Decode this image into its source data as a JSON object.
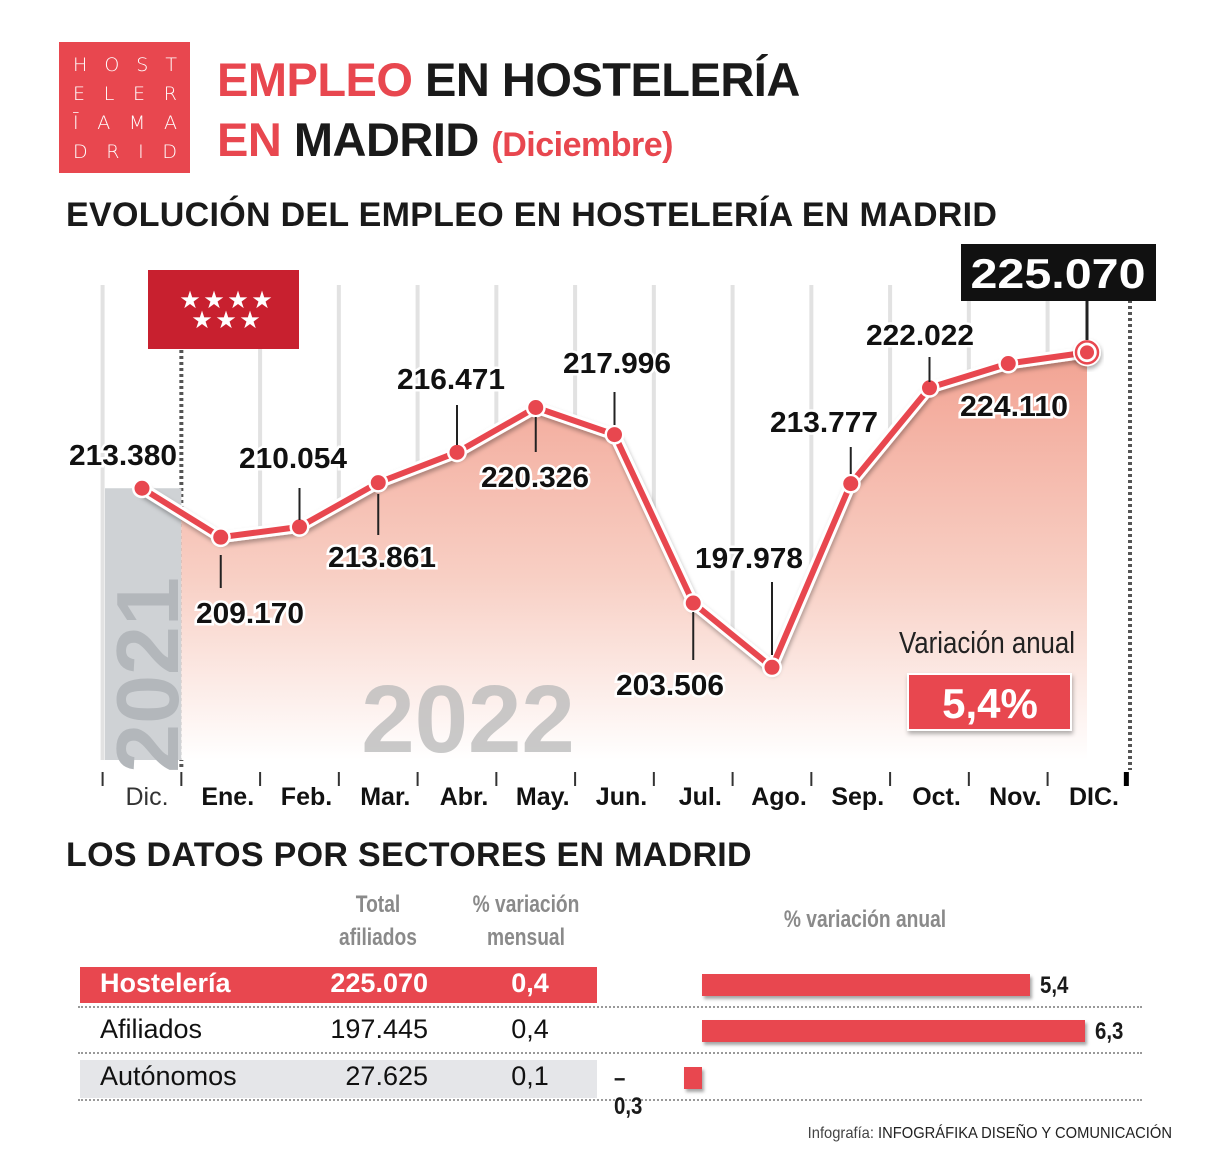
{
  "logo": {
    "rows": [
      [
        "H",
        "O",
        "S",
        "T"
      ],
      [
        "E",
        "L",
        "E",
        "R"
      ],
      [
        "Ī",
        "A",
        "M",
        "A"
      ],
      [
        "D",
        "R",
        "I",
        "D"
      ]
    ]
  },
  "header": {
    "title_part1": "EMPLEO",
    "title_part2": "EN HOSTELERÍA",
    "title_part3": "EN",
    "title_part4": "MADRID",
    "title_part5": "(Diciembre)"
  },
  "section1_title": "EVOLUCIÓN DEL EMPLEO EN HOSTELERÍA EN MADRID",
  "section2_title": "LOS DATOS POR SECTORES EN MADRID",
  "chart_data": {
    "type": "line",
    "categories": [
      "Dic.",
      "Ene.",
      "Feb.",
      "Mar.",
      "Abr.",
      "May.",
      "Jun.",
      "Jul.",
      "Ago.",
      "Sep.",
      "Oct.",
      "Nov.",
      "DIC."
    ],
    "values": [
      213380,
      209170,
      210054,
      213861,
      216471,
      220326,
      217996,
      203506,
      197978,
      213777,
      222022,
      224110,
      225070
    ],
    "value_labels": [
      "213.380",
      "209.170",
      "210.054",
      "213.861",
      "216.471",
      "220.326",
      "217.996",
      "203.506",
      "197.978",
      "213.777",
      "222.022",
      "224.110",
      "225.070"
    ],
    "ylim": [
      190000,
      232500
    ],
    "year_labels": {
      "previous": "2021",
      "current": "2022"
    },
    "line_color": "#e8474f",
    "area_color": "#f2a393",
    "highlight_last": true,
    "annotation": {
      "label": "Variación anual",
      "value": "5,4%"
    },
    "flag": "Comunidad de Madrid flag (seven white stars on red)"
  },
  "table": {
    "headers": {
      "total": "Total afiliados",
      "monthly": "% variación mensual",
      "annual": "% variación anual"
    },
    "rows": [
      {
        "name": "Hostelería",
        "total": "225.070",
        "monthly": "0,4",
        "annual": 5.4,
        "annual_label": "5,4"
      },
      {
        "name": "Afiliados",
        "total": "197.445",
        "monthly": "0,4",
        "annual": 6.3,
        "annual_label": "6,3"
      },
      {
        "name": "Autónomos",
        "total": "27.625",
        "monthly": "0,1",
        "annual": -0.3,
        "annual_label": "– 0,3"
      }
    ]
  },
  "credit": {
    "prefix": "Infografía:",
    "name": "INFOGRÁFIKA DISEÑO Y COMUNICACIÓN"
  }
}
